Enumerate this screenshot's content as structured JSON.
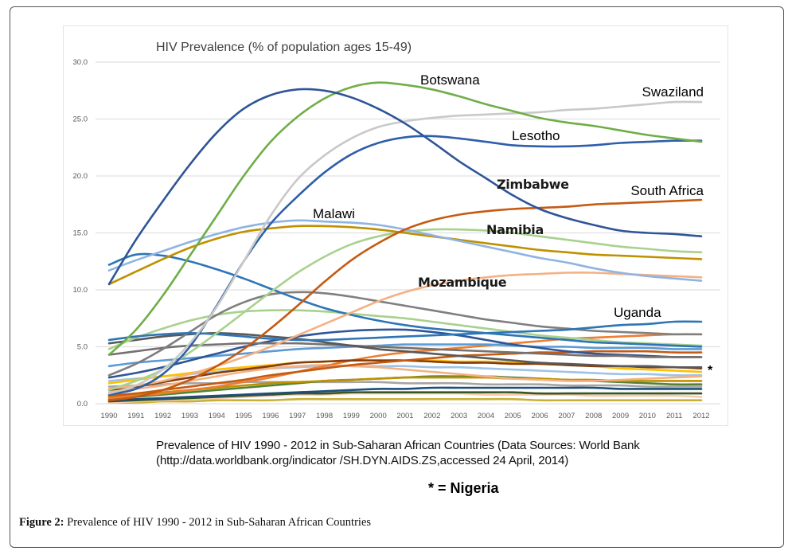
{
  "figure": {
    "label": "Figure 2:",
    "caption": " Prevalence of HIV 1990 - 2012 in Sub-Saharan African Countries"
  },
  "source_note": {
    "line1": "Prevalence of HIV 1990 - 2012 in Sub-Saharan African Countries (Data Sources: World Bank",
    "line2": "(http://data.worldbank.org/indicator /SH.DYN.AIDS.ZS,accessed 24 April, 2014)",
    "marker_legend": "* = Nigeria"
  },
  "chart_data": {
    "type": "line",
    "title": "HIV Prevalence (% of population ages 15-49)",
    "xlabel": "",
    "ylabel": "",
    "ylim": [
      0,
      30
    ],
    "yticks": [
      "0.0",
      "5.0",
      "10.0",
      "15.0",
      "20.0",
      "25.0",
      "30.0"
    ],
    "grid": true,
    "legend": "none (inline labels)",
    "x": [
      "1990",
      "1991",
      "1992",
      "1993",
      "1994",
      "1995",
      "1996",
      "1997",
      "1998",
      "1999",
      "2000",
      "2001",
      "2002",
      "2003",
      "2004",
      "2005",
      "2006",
      "2007",
      "2008",
      "2009",
      "2010",
      "2011",
      "2012"
    ],
    "series": [
      {
        "name": "Zimbabwe",
        "label": "Zimbabwe",
        "label_style": "bold",
        "color": "#2f5597",
        "values": [
          10.5,
          14.4,
          17.8,
          21.0,
          23.8,
          25.9,
          27.1,
          27.6,
          27.5,
          26.9,
          25.9,
          24.6,
          23.0,
          21.3,
          19.8,
          18.3,
          17.1,
          16.3,
          15.7,
          15.2,
          15.0,
          14.9,
          14.7
        ]
      },
      {
        "name": "Botswana",
        "label": "Botswana",
        "label_style": "regular",
        "color": "#70ad47",
        "values": [
          4.3,
          6.5,
          9.5,
          13.0,
          16.5,
          20.0,
          23.0,
          25.2,
          26.8,
          27.8,
          28.2,
          28.0,
          27.6,
          27.0,
          26.3,
          25.7,
          25.1,
          24.7,
          24.4,
          24.0,
          23.6,
          23.3,
          23.0
        ]
      },
      {
        "name": "Swaziland",
        "label": "Swaziland",
        "label_style": "regular",
        "color": "#c9c9c9",
        "values": [
          0.9,
          1.6,
          3.0,
          5.3,
          8.5,
          12.5,
          16.5,
          19.7,
          21.8,
          23.3,
          24.3,
          24.8,
          25.1,
          25.3,
          25.4,
          25.5,
          25.6,
          25.8,
          25.9,
          26.1,
          26.3,
          26.5,
          26.5
        ]
      },
      {
        "name": "Lesotho",
        "label": "Lesotho",
        "label_style": "regular",
        "color": "#2e5fa8",
        "values": [
          0.8,
          1.3,
          2.6,
          5.0,
          8.6,
          12.5,
          15.8,
          18.2,
          20.3,
          21.9,
          22.9,
          23.4,
          23.5,
          23.3,
          23.0,
          22.7,
          22.6,
          22.6,
          22.7,
          22.9,
          23.0,
          23.1,
          23.1
        ]
      },
      {
        "name": "South Africa",
        "label": "South Africa",
        "label_style": "regular",
        "color": "#c55a11",
        "values": [
          0.3,
          0.6,
          1.2,
          2.1,
          3.3,
          4.8,
          6.6,
          8.6,
          10.7,
          12.6,
          14.1,
          15.3,
          16.1,
          16.6,
          16.9,
          17.1,
          17.2,
          17.3,
          17.5,
          17.6,
          17.7,
          17.8,
          17.9
        ]
      },
      {
        "name": "Malawi",
        "label": "Malawi",
        "label_style": "regular",
        "color": "#8fb4e3",
        "values": [
          11.7,
          12.6,
          13.4,
          14.2,
          14.9,
          15.5,
          15.9,
          16.1,
          16.0,
          15.9,
          15.7,
          15.3,
          14.8,
          14.3,
          13.8,
          13.3,
          12.8,
          12.4,
          11.9,
          11.5,
          11.2,
          11.0,
          10.8
        ]
      },
      {
        "name": "Unlabeled (gold)",
        "label": "",
        "color": "#bf9000",
        "values": [
          10.5,
          11.6,
          12.7,
          13.7,
          14.5,
          15.1,
          15.4,
          15.6,
          15.6,
          15.5,
          15.3,
          15.0,
          14.7,
          14.4,
          14.1,
          13.8,
          13.5,
          13.3,
          13.1,
          13.0,
          12.9,
          12.8,
          12.7
        ]
      },
      {
        "name": "Namibia",
        "label": "Namibia",
        "label_style": "bold",
        "color": "#a9d18e",
        "values": [
          1.2,
          2.0,
          3.0,
          4.5,
          6.2,
          8.0,
          9.8,
          11.5,
          12.9,
          14.0,
          14.7,
          15.1,
          15.3,
          15.3,
          15.2,
          15.0,
          14.7,
          14.4,
          14.1,
          13.8,
          13.6,
          13.4,
          13.3
        ]
      },
      {
        "name": "Mozambique",
        "label": "Mozambique",
        "label_style": "bold",
        "color": "#f4b183",
        "values": [
          1.3,
          1.6,
          2.0,
          2.6,
          3.3,
          4.1,
          5.0,
          6.0,
          7.0,
          8.0,
          9.0,
          9.8,
          10.4,
          10.8,
          11.1,
          11.3,
          11.4,
          11.5,
          11.5,
          11.4,
          11.3,
          11.2,
          11.1
        ]
      },
      {
        "name": "Unlabeled (blue, declining)",
        "label": "",
        "color": "#2e75b6",
        "values": [
          12.2,
          13.1,
          13.0,
          12.5,
          11.8,
          11.0,
          10.1,
          9.2,
          8.4,
          7.8,
          7.3,
          6.9,
          6.6,
          6.4,
          6.2,
          6.0,
          5.8,
          5.6,
          5.4,
          5.3,
          5.2,
          5.1,
          5.0
        ]
      },
      {
        "name": "Uganda",
        "label": "Uganda",
        "label_style": "regular",
        "color": "#2e75b6",
        "values": [
          5.6,
          5.9,
          6.1,
          6.2,
          6.1,
          5.9,
          5.7,
          5.6,
          5.6,
          5.7,
          5.8,
          5.9,
          6.0,
          6.1,
          6.2,
          6.3,
          6.4,
          6.5,
          6.7,
          6.9,
          7.0,
          7.2,
          7.2
        ]
      },
      {
        "name": "Unlabeled (gray, peak 1997)",
        "label": "",
        "color": "#7f7f7f",
        "values": [
          2.5,
          3.5,
          4.8,
          6.3,
          7.8,
          8.9,
          9.6,
          9.8,
          9.7,
          9.4,
          9.0,
          8.6,
          8.2,
          7.8,
          7.4,
          7.1,
          6.8,
          6.6,
          6.4,
          6.3,
          6.2,
          6.1,
          6.1
        ]
      },
      {
        "name": "Unlabeled (light green)",
        "label": "",
        "color": "#a9d18e",
        "values": [
          4.8,
          5.8,
          6.6,
          7.3,
          7.8,
          8.1,
          8.2,
          8.2,
          8.1,
          7.9,
          7.7,
          7.5,
          7.2,
          6.9,
          6.6,
          6.3,
          6.0,
          5.8,
          5.6,
          5.4,
          5.3,
          5.2,
          5.1
        ]
      },
      {
        "name": "Unlabeled (dark gray)",
        "label": "",
        "color": "#595959",
        "values": [
          5.3,
          5.6,
          5.9,
          6.1,
          6.2,
          6.1,
          5.9,
          5.7,
          5.4,
          5.1,
          4.8,
          4.6,
          4.4,
          4.2,
          4.0,
          3.8,
          3.6,
          3.5,
          3.4,
          3.3,
          3.3,
          3.2,
          3.2
        ]
      },
      {
        "name": "Unlabeled (medium gray)",
        "label": "",
        "color": "#767171",
        "values": [
          4.3,
          4.6,
          4.9,
          5.1,
          5.2,
          5.3,
          5.3,
          5.3,
          5.2,
          5.1,
          5.0,
          4.9,
          4.8,
          4.7,
          4.6,
          4.5,
          4.4,
          4.3,
          4.2,
          4.2,
          4.1,
          4.1,
          4.1
        ]
      },
      {
        "name": "Unlabeled (blue, peak 2001)",
        "label": "",
        "color": "#2f5597",
        "values": [
          2.3,
          2.7,
          3.2,
          3.8,
          4.4,
          5.0,
          5.5,
          5.9,
          6.2,
          6.4,
          6.5,
          6.5,
          6.3,
          6.0,
          5.6,
          5.2,
          4.9,
          4.6,
          4.4,
          4.3,
          4.2,
          4.1,
          4.1
        ]
      },
      {
        "name": "Unlabeled (sky blue)",
        "label": "",
        "color": "#5b9bd5",
        "values": [
          3.3,
          3.6,
          3.8,
          4.0,
          4.2,
          4.4,
          4.6,
          4.8,
          4.9,
          5.0,
          5.1,
          5.2,
          5.2,
          5.2,
          5.2,
          5.1,
          5.0,
          5.0,
          4.9,
          4.9,
          4.9,
          4.8,
          4.8
        ]
      },
      {
        "name": "Unlabeled (rust)",
        "label": "",
        "color": "#c55a11",
        "values": [
          0.7,
          0.9,
          1.2,
          1.5,
          1.8,
          2.1,
          2.5,
          2.8,
          3.1,
          3.4,
          3.6,
          3.8,
          4.0,
          4.2,
          4.3,
          4.4,
          4.5,
          4.5,
          4.6,
          4.6,
          4.6,
          4.5,
          4.5
        ]
      },
      {
        "name": "Nigeria",
        "label": "*",
        "label_style": "marker",
        "color": "#843c0c",
        "values": [
          1.2,
          1.5,
          1.9,
          2.3,
          2.7,
          3.0,
          3.3,
          3.6,
          3.7,
          3.8,
          3.8,
          3.8,
          3.7,
          3.6,
          3.6,
          3.5,
          3.5,
          3.4,
          3.3,
          3.3,
          3.2,
          3.2,
          3.1
        ]
      },
      {
        "name": "Unlabeled (orange rising)",
        "label": "",
        "color": "#ed7d31",
        "values": [
          0.5,
          0.7,
          0.9,
          1.2,
          1.5,
          1.9,
          2.3,
          2.8,
          3.3,
          3.8,
          4.2,
          4.5,
          4.7,
          4.9,
          5.1,
          5.3,
          5.5,
          5.7,
          5.8,
          5.9,
          6.0,
          6.1,
          6.1
        ]
      },
      {
        "name": "Unlabeled (yellow)",
        "label": "",
        "color": "#ffc000",
        "values": [
          1.8,
          2.1,
          2.4,
          2.7,
          3.0,
          3.2,
          3.4,
          3.6,
          3.7,
          3.8,
          3.8,
          3.8,
          3.8,
          3.7,
          3.7,
          3.6,
          3.5,
          3.4,
          3.3,
          3.1,
          3.0,
          2.9,
          2.8
        ]
      },
      {
        "name": "Unlabeled (light orange)",
        "label": "",
        "color": "#f4b183",
        "values": [
          1.0,
          1.3,
          1.6,
          2.0,
          2.4,
          2.8,
          3.1,
          3.3,
          3.4,
          3.3,
          3.2,
          3.0,
          2.8,
          2.6,
          2.4,
          2.2,
          2.1,
          2.0,
          2.0,
          2.1,
          2.2,
          2.3,
          2.4
        ]
      },
      {
        "name": "Unlabeled (pale blue)",
        "label": "",
        "color": "#9dc3e6",
        "values": [
          2.0,
          2.2,
          2.4,
          2.6,
          2.8,
          3.0,
          3.1,
          3.2,
          3.3,
          3.3,
          3.3,
          3.3,
          3.2,
          3.2,
          3.1,
          3.0,
          2.9,
          2.8,
          2.7,
          2.6,
          2.6,
          2.5,
          2.5
        ]
      },
      {
        "name": "Unlabeled (gold low)",
        "label": "",
        "color": "#bf9000",
        "values": [
          0.6,
          0.8,
          1.0,
          1.2,
          1.4,
          1.6,
          1.8,
          1.9,
          2.0,
          2.1,
          2.2,
          2.3,
          2.3,
          2.3,
          2.3,
          2.2,
          2.2,
          2.1,
          2.1,
          2.0,
          2.0,
          2.0,
          2.0
        ]
      },
      {
        "name": "Unlabeled (dark green)",
        "label": "",
        "color": "#548235",
        "values": [
          0.4,
          0.6,
          0.8,
          1.0,
          1.2,
          1.4,
          1.6,
          1.8,
          2.0,
          2.1,
          2.2,
          2.3,
          2.4,
          2.4,
          2.4,
          2.3,
          2.2,
          2.1,
          2.0,
          1.9,
          1.8,
          1.7,
          1.7
        ]
      },
      {
        "name": "Unlabeled (gray low)",
        "label": "",
        "color": "#a5a5a5",
        "values": [
          1.5,
          1.6,
          1.7,
          1.8,
          1.8,
          1.9,
          1.9,
          1.9,
          1.9,
          1.9,
          1.9,
          1.8,
          1.8,
          1.8,
          1.7,
          1.7,
          1.7,
          1.6,
          1.6,
          1.6,
          1.5,
          1.5,
          1.5
        ]
      },
      {
        "name": "Unlabeled (navy low)",
        "label": "",
        "color": "#1f4e79",
        "values": [
          0.3,
          0.4,
          0.5,
          0.6,
          0.7,
          0.8,
          0.9,
          1.0,
          1.1,
          1.2,
          1.3,
          1.3,
          1.4,
          1.4,
          1.4,
          1.4,
          1.4,
          1.4,
          1.4,
          1.3,
          1.3,
          1.3,
          1.3
        ]
      },
      {
        "name": "Unlabeled (olive)",
        "label": "",
        "color": "#375623",
        "values": [
          0.2,
          0.3,
          0.4,
          0.5,
          0.6,
          0.7,
          0.8,
          0.9,
          0.9,
          1.0,
          1.0,
          1.0,
          1.0,
          1.0,
          1.0,
          1.0,
          0.9,
          0.9,
          0.9,
          0.9,
          0.9,
          0.9,
          0.9
        ]
      },
      {
        "name": "Unlabeled (peach low)",
        "label": "",
        "color": "#f8cbad",
        "values": [
          0.1,
          0.2,
          0.3,
          0.4,
          0.5,
          0.6,
          0.7,
          0.8,
          0.8,
          0.9,
          0.9,
          0.9,
          0.9,
          0.9,
          0.8,
          0.8,
          0.8,
          0.8,
          0.7,
          0.7,
          0.7,
          0.7,
          0.6
        ]
      },
      {
        "name": "Unlabeled (khaki)",
        "label": "",
        "color": "#c9b037",
        "values": [
          0.1,
          0.1,
          0.2,
          0.2,
          0.3,
          0.3,
          0.3,
          0.4,
          0.4,
          0.4,
          0.4,
          0.4,
          0.4,
          0.4,
          0.4,
          0.4,
          0.3,
          0.3,
          0.3,
          0.3,
          0.3,
          0.3,
          0.3
        ]
      }
    ]
  }
}
